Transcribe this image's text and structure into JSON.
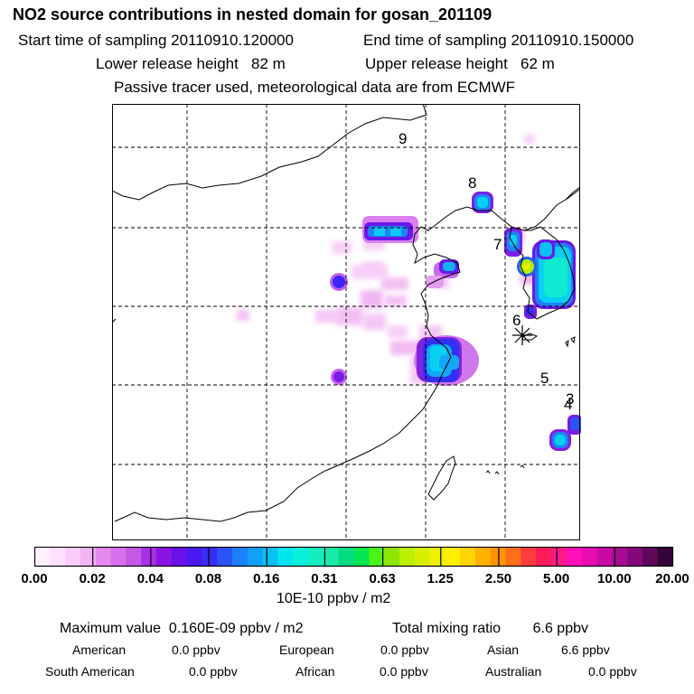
{
  "header": {
    "title": "NO2 source contributions in nested domain for gosan_201109",
    "start": "Start time of sampling 20110910.120000",
    "end": "End time of sampling 20110910.150000",
    "lower": "Lower release height   82 m",
    "upper": "Upper release height   62 m",
    "note": "Passive tracer used, meteorological data are from ECMWF"
  },
  "map": {
    "labels": [
      "9",
      "8",
      "7",
      "6",
      "5",
      "3",
      "4"
    ]
  },
  "colorbar": {
    "ticks": [
      "0.00",
      "0.02",
      "0.04",
      "0.08",
      "0.16",
      "0.31",
      "0.63",
      "1.25",
      "2.50",
      "5.00",
      "10.00",
      "20.00"
    ],
    "colors": [
      "#fff2ff",
      "#ffe0ff",
      "#fbccfb",
      "#f2b4f4",
      "#e58aec",
      "#d770ec",
      "#c25ae6",
      "#a830e6",
      "#8a14e0",
      "#6a10e8",
      "#4a18f0",
      "#3a2cf4",
      "#2a54f6",
      "#1c80f6",
      "#10a0f6",
      "#08c0f4",
      "#00e6f0",
      "#08f0dc",
      "#12eec0",
      "#18eaa8",
      "#00dc82",
      "#00e650",
      "#4cf21a",
      "#8ee600",
      "#bcf000",
      "#d8f000",
      "#eef000",
      "#fff000",
      "#ffd400",
      "#ffb200",
      "#ff9200",
      "#ff6e1a",
      "#ff3c3c",
      "#ff1a5a",
      "#ff1a88",
      "#ff10b8",
      "#e80cb4",
      "#c80aa4",
      "#a60a92",
      "#84087a",
      "#5e0658",
      "#34043a"
    ],
    "units": "10E-10 ppbv / m2"
  },
  "summary": {
    "max": "Maximum value  0.160E-09 ppbv / m2",
    "total": "Total mixing ratio        6.6 ppbv",
    "american_label": "American",
    "american_value": "0.0 ppbv",
    "european_label": "European",
    "european_value": "0.0 ppbv",
    "asian_label": "Asian",
    "asian_value": "6.6 ppbv",
    "south_american_label": "South American",
    "south_american_value": "0.0 ppbv",
    "african_label": "African",
    "african_value": "0.0 ppbv",
    "australian_label": "Australian",
    "australian_value": "0.0 ppbv"
  }
}
